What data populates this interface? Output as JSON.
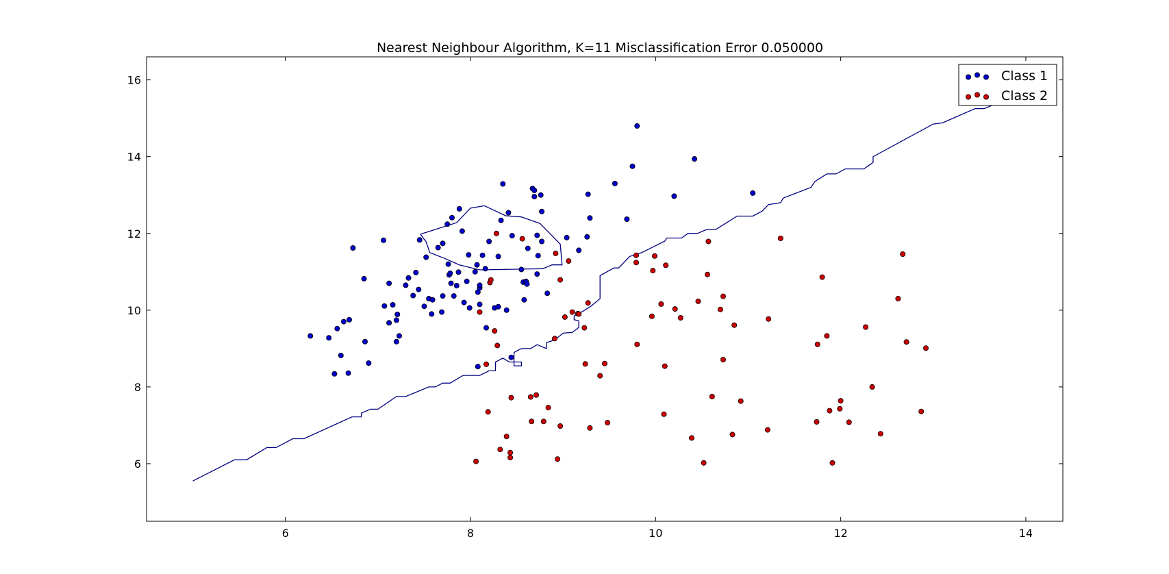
{
  "chart_data": {
    "type": "scatter",
    "title": "Nearest Neighbour Algorithm, K=11 Misclassification Error 0.050000",
    "xlabel": "",
    "ylabel": "",
    "xlim": [
      4.5,
      14.4
    ],
    "ylim": [
      4.5,
      16.6
    ],
    "xticks": [
      6,
      8,
      10,
      12,
      14
    ],
    "yticks": [
      6,
      8,
      10,
      12,
      14,
      16
    ],
    "grid": false,
    "legend_position": "top-right",
    "series": [
      {
        "name": "Class 1",
        "color": "#0000cc",
        "points": [
          [
            6.27,
            9.33
          ],
          [
            6.47,
            9.28
          ],
          [
            6.56,
            9.52
          ],
          [
            6.63,
            9.7
          ],
          [
            6.69,
            9.75
          ],
          [
            6.6,
            8.82
          ],
          [
            6.53,
            8.34
          ],
          [
            6.68,
            8.36
          ],
          [
            6.86,
            9.18
          ],
          [
            6.9,
            8.62
          ],
          [
            6.73,
            11.62
          ],
          [
            6.85,
            10.82
          ],
          [
            7.06,
            11.82
          ],
          [
            7.07,
            10.11
          ],
          [
            7.12,
            9.67
          ],
          [
            7.12,
            10.7
          ],
          [
            7.16,
            10.14
          ],
          [
            7.2,
            9.74
          ],
          [
            7.21,
            9.89
          ],
          [
            7.2,
            9.18
          ],
          [
            7.23,
            9.33
          ],
          [
            7.3,
            10.65
          ],
          [
            7.33,
            10.84
          ],
          [
            7.38,
            10.38
          ],
          [
            7.41,
            10.98
          ],
          [
            7.44,
            10.54
          ],
          [
            7.45,
            11.83
          ],
          [
            7.5,
            10.1
          ],
          [
            7.52,
            11.38
          ],
          [
            7.55,
            10.3
          ],
          [
            7.59,
            10.27
          ],
          [
            7.58,
            9.9
          ],
          [
            7.65,
            11.63
          ],
          [
            7.69,
            9.95
          ],
          [
            7.7,
            11.74
          ],
          [
            7.7,
            10.37
          ],
          [
            7.75,
            12.24
          ],
          [
            7.76,
            11.2
          ],
          [
            7.77,
            10.92
          ],
          [
            7.78,
            10.96
          ],
          [
            7.8,
            12.41
          ],
          [
            7.79,
            10.7
          ],
          [
            7.82,
            10.37
          ],
          [
            7.85,
            10.64
          ],
          [
            7.87,
            10.99
          ],
          [
            7.88,
            12.64
          ],
          [
            7.91,
            12.06
          ],
          [
            7.93,
            10.2
          ],
          [
            7.96,
            10.75
          ],
          [
            7.98,
            11.44
          ],
          [
            7.99,
            10.06
          ],
          [
            8.05,
            11.0
          ],
          [
            8.07,
            11.18
          ],
          [
            8.08,
            10.47
          ],
          [
            8.1,
            10.58
          ],
          [
            8.1,
            10.65
          ],
          [
            8.1,
            10.15
          ],
          [
            8.08,
            8.53
          ],
          [
            8.13,
            11.43
          ],
          [
            8.16,
            11.08
          ],
          [
            8.17,
            9.54
          ],
          [
            8.2,
            11.79
          ],
          [
            8.26,
            10.06
          ],
          [
            8.3,
            10.09
          ],
          [
            8.3,
            11.4
          ],
          [
            8.33,
            12.34
          ],
          [
            8.35,
            13.29
          ],
          [
            8.39,
            10.0
          ],
          [
            8.41,
            12.54
          ],
          [
            8.44,
            8.77
          ],
          [
            8.45,
            11.94
          ],
          [
            8.55,
            11.06
          ],
          [
            8.57,
            10.73
          ],
          [
            8.58,
            10.27
          ],
          [
            8.6,
            10.75
          ],
          [
            8.61,
            10.68
          ],
          [
            8.62,
            11.61
          ],
          [
            8.67,
            13.17
          ],
          [
            8.69,
            13.12
          ],
          [
            8.69,
            12.96
          ],
          [
            8.72,
            11.95
          ],
          [
            8.73,
            11.42
          ],
          [
            8.72,
            10.94
          ],
          [
            8.76,
            13.0
          ],
          [
            8.77,
            11.79
          ],
          [
            8.77,
            12.57
          ],
          [
            8.83,
            10.44
          ],
          [
            9.04,
            11.89
          ],
          [
            9.17,
            11.56
          ],
          [
            9.26,
            11.91
          ],
          [
            9.27,
            13.02
          ],
          [
            9.29,
            12.4
          ],
          [
            9.56,
            13.3
          ],
          [
            9.69,
            12.37
          ],
          [
            9.75,
            13.75
          ],
          [
            9.8,
            14.8
          ],
          [
            10.2,
            12.97
          ],
          [
            10.42,
            13.94
          ],
          [
            11.05,
            13.05
          ]
        ]
      },
      {
        "name": "Class 2",
        "color": "#cc0000",
        "points": [
          [
            8.06,
            6.06
          ],
          [
            8.1,
            9.95
          ],
          [
            8.17,
            8.59
          ],
          [
            8.19,
            7.35
          ],
          [
            8.21,
            10.72
          ],
          [
            8.22,
            10.79
          ],
          [
            8.26,
            9.46
          ],
          [
            8.29,
            9.08
          ],
          [
            8.28,
            12.0
          ],
          [
            8.32,
            6.37
          ],
          [
            8.39,
            6.71
          ],
          [
            8.43,
            6.29
          ],
          [
            8.43,
            6.16
          ],
          [
            8.44,
            7.72
          ],
          [
            8.56,
            11.86
          ],
          [
            8.65,
            7.74
          ],
          [
            8.66,
            7.1
          ],
          [
            8.71,
            7.79
          ],
          [
            8.79,
            7.1
          ],
          [
            8.84,
            7.46
          ],
          [
            8.91,
            9.26
          ],
          [
            8.92,
            11.48
          ],
          [
            8.94,
            6.12
          ],
          [
            8.97,
            6.98
          ],
          [
            8.97,
            10.79
          ],
          [
            9.02,
            9.82
          ],
          [
            9.06,
            11.28
          ],
          [
            9.1,
            9.95
          ],
          [
            9.16,
            9.91
          ],
          [
            9.17,
            9.9
          ],
          [
            9.23,
            9.54
          ],
          [
            9.24,
            8.6
          ],
          [
            9.27,
            10.19
          ],
          [
            9.29,
            6.93
          ],
          [
            9.4,
            8.29
          ],
          [
            9.45,
            8.61
          ],
          [
            9.48,
            7.07
          ],
          [
            9.79,
            11.43
          ],
          [
            9.79,
            11.24
          ],
          [
            9.8,
            9.11
          ],
          [
            9.96,
            9.84
          ],
          [
            9.97,
            11.03
          ],
          [
            9.99,
            11.41
          ],
          [
            10.06,
            10.16
          ],
          [
            10.09,
            7.29
          ],
          [
            10.1,
            8.54
          ],
          [
            10.11,
            11.17
          ],
          [
            10.21,
            10.03
          ],
          [
            10.27,
            9.8
          ],
          [
            10.39,
            6.67
          ],
          [
            10.46,
            10.23
          ],
          [
            10.52,
            6.02
          ],
          [
            10.56,
            10.93
          ],
          [
            10.57,
            11.79
          ],
          [
            10.61,
            7.75
          ],
          [
            10.7,
            10.02
          ],
          [
            10.73,
            10.36
          ],
          [
            10.73,
            8.71
          ],
          [
            10.83,
            6.76
          ],
          [
            10.85,
            9.61
          ],
          [
            10.92,
            7.63
          ],
          [
            11.21,
            6.88
          ],
          [
            11.22,
            9.77
          ],
          [
            11.35,
            11.87
          ],
          [
            11.74,
            7.09
          ],
          [
            11.75,
            9.11
          ],
          [
            11.8,
            10.86
          ],
          [
            11.85,
            9.33
          ],
          [
            11.88,
            7.38
          ],
          [
            11.91,
            6.02
          ],
          [
            11.99,
            7.43
          ],
          [
            12.0,
            7.64
          ],
          [
            12.09,
            7.08
          ],
          [
            12.27,
            9.56
          ],
          [
            12.34,
            8.0
          ],
          [
            12.43,
            6.78
          ],
          [
            12.62,
            10.3
          ],
          [
            12.67,
            11.46
          ],
          [
            12.71,
            9.17
          ],
          [
            12.87,
            7.36
          ],
          [
            12.92,
            9.01
          ]
        ]
      }
    ],
    "decision_boundary": {
      "color": "#000080",
      "lines": [
        [
          [
            5.0,
            5.55
          ],
          [
            5.45,
            6.1
          ],
          [
            5.58,
            6.1
          ],
          [
            5.8,
            6.42
          ],
          [
            5.9,
            6.42
          ],
          [
            6.08,
            6.65
          ],
          [
            6.2,
            6.65
          ],
          [
            6.72,
            7.22
          ],
          [
            6.82,
            7.22
          ],
          [
            6.82,
            7.32
          ],
          [
            6.92,
            7.42
          ],
          [
            7.0,
            7.42
          ],
          [
            7.2,
            7.75
          ],
          [
            7.3,
            7.75
          ],
          [
            7.55,
            8.0
          ],
          [
            7.62,
            8.0
          ],
          [
            7.7,
            8.1
          ],
          [
            7.78,
            8.1
          ],
          [
            7.92,
            8.3
          ],
          [
            8.1,
            8.3
          ],
          [
            8.2,
            8.42
          ],
          [
            8.27,
            8.42
          ],
          [
            8.27,
            8.65
          ],
          [
            8.35,
            8.75
          ],
          [
            8.42,
            8.65
          ],
          [
            8.55,
            8.65
          ],
          [
            8.55,
            8.55
          ],
          [
            8.47,
            8.55
          ],
          [
            8.47,
            8.9
          ],
          [
            8.55,
            9.0
          ],
          [
            8.65,
            9.0
          ],
          [
            8.72,
            9.1
          ],
          [
            8.82,
            9.0
          ],
          [
            8.82,
            9.15
          ],
          [
            8.88,
            9.2
          ],
          [
            8.95,
            9.3
          ],
          [
            9.0,
            9.4
          ],
          [
            9.1,
            9.42
          ],
          [
            9.17,
            9.55
          ],
          [
            9.17,
            9.72
          ],
          [
            9.12,
            9.75
          ],
          [
            9.12,
            9.85
          ],
          [
            9.22,
            9.98
          ],
          [
            9.3,
            10.1
          ],
          [
            9.4,
            10.3
          ],
          [
            9.4,
            10.9
          ],
          [
            9.55,
            11.1
          ],
          [
            9.6,
            11.1
          ],
          [
            9.68,
            11.3
          ],
          [
            9.72,
            11.4
          ],
          [
            9.85,
            11.5
          ],
          [
            10.0,
            11.68
          ],
          [
            10.1,
            11.8
          ],
          [
            10.12,
            11.88
          ],
          [
            10.28,
            11.88
          ],
          [
            10.35,
            12.0
          ],
          [
            10.45,
            12.0
          ],
          [
            10.55,
            12.1
          ],
          [
            10.65,
            12.1
          ],
          [
            10.88,
            12.45
          ],
          [
            11.05,
            12.45
          ],
          [
            11.15,
            12.58
          ],
          [
            11.22,
            12.75
          ],
          [
            11.35,
            12.8
          ],
          [
            11.38,
            12.92
          ],
          [
            11.68,
            13.2
          ],
          [
            11.72,
            13.35
          ],
          [
            11.85,
            13.55
          ],
          [
            11.95,
            13.55
          ],
          [
            12.05,
            13.68
          ],
          [
            12.25,
            13.68
          ],
          [
            12.35,
            13.85
          ],
          [
            12.35,
            14.0
          ],
          [
            13.0,
            14.85
          ],
          [
            13.1,
            14.88
          ],
          [
            13.45,
            15.25
          ],
          [
            13.55,
            15.25
          ],
          [
            13.7,
            15.4
          ]
        ],
        [
          [
            7.46,
            11.98
          ],
          [
            7.85,
            12.28
          ],
          [
            8.0,
            12.66
          ],
          [
            8.15,
            12.72
          ],
          [
            8.38,
            12.46
          ],
          [
            8.55,
            12.43
          ],
          [
            8.75,
            12.26
          ],
          [
            8.97,
            11.72
          ],
          [
            8.99,
            11.18
          ],
          [
            8.88,
            11.18
          ],
          [
            8.78,
            11.08
          ],
          [
            8.1,
            11.05
          ],
          [
            7.88,
            11.18
          ],
          [
            7.72,
            11.35
          ],
          [
            7.56,
            11.5
          ],
          [
            7.52,
            11.78
          ],
          [
            7.46,
            11.98
          ]
        ]
      ]
    }
  }
}
